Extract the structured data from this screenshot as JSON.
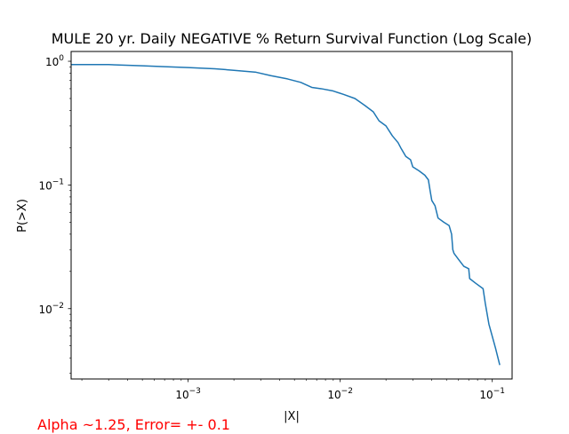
{
  "chart_data": {
    "type": "line",
    "title": "MULE 20 yr. Daily NEGATIVE % Return Survival Function (Log Scale)",
    "xlabel": "|X|",
    "ylabel": "P(>X)",
    "xscale": "log",
    "yscale": "log",
    "xlim": [
      0.00017,
      0.135
    ],
    "ylim": [
      0.0027,
      1.2
    ],
    "grid": false,
    "x_ticks": [
      {
        "value": 0.001,
        "base": "10",
        "exp": "−3"
      },
      {
        "value": 0.01,
        "base": "10",
        "exp": "−2"
      },
      {
        "value": 0.1,
        "base": "10",
        "exp": "−1"
      }
    ],
    "y_ticks": [
      {
        "value": 0.01,
        "base": "10",
        "exp": "−2"
      },
      {
        "value": 0.1,
        "base": "10",
        "exp": "−1"
      },
      {
        "value": 1,
        "base": "10",
        "exp": "0"
      }
    ],
    "series": [
      {
        "color": "#1f77b4",
        "points": [
          [
            0.00017,
            0.94
          ],
          [
            0.0003,
            0.94
          ],
          [
            0.0005,
            0.92
          ],
          [
            0.0007,
            0.905
          ],
          [
            0.001,
            0.89
          ],
          [
            0.0015,
            0.87
          ],
          [
            0.002,
            0.845
          ],
          [
            0.0028,
            0.815
          ],
          [
            0.0035,
            0.765
          ],
          [
            0.0045,
            0.72
          ],
          [
            0.0055,
            0.675
          ],
          [
            0.0065,
            0.615
          ],
          [
            0.0075,
            0.6
          ],
          [
            0.009,
            0.575
          ],
          [
            0.0105,
            0.54
          ],
          [
            0.0125,
            0.5
          ],
          [
            0.0145,
            0.44
          ],
          [
            0.0165,
            0.39
          ],
          [
            0.018,
            0.33
          ],
          [
            0.02,
            0.3
          ],
          [
            0.022,
            0.25
          ],
          [
            0.024,
            0.22
          ],
          [
            0.025,
            0.2
          ],
          [
            0.027,
            0.17
          ],
          [
            0.029,
            0.16
          ],
          [
            0.03,
            0.14
          ],
          [
            0.033,
            0.13
          ],
          [
            0.036,
            0.12
          ],
          [
            0.038,
            0.11
          ],
          [
            0.039,
            0.09
          ],
          [
            0.04,
            0.075
          ],
          [
            0.042,
            0.068
          ],
          [
            0.044,
            0.054
          ],
          [
            0.048,
            0.05
          ],
          [
            0.052,
            0.047
          ],
          [
            0.054,
            0.04
          ],
          [
            0.055,
            0.03
          ],
          [
            0.056,
            0.028
          ],
          [
            0.06,
            0.025
          ],
          [
            0.065,
            0.022
          ],
          [
            0.07,
            0.021
          ],
          [
            0.071,
            0.0175
          ],
          [
            0.078,
            0.016
          ],
          [
            0.087,
            0.0145
          ],
          [
            0.09,
            0.011
          ],
          [
            0.095,
            0.0075
          ],
          [
            0.105,
            0.0048
          ],
          [
            0.112,
            0.0035
          ]
        ]
      }
    ]
  },
  "footnote": "Alpha ~1.25, Error= +- 0.1"
}
